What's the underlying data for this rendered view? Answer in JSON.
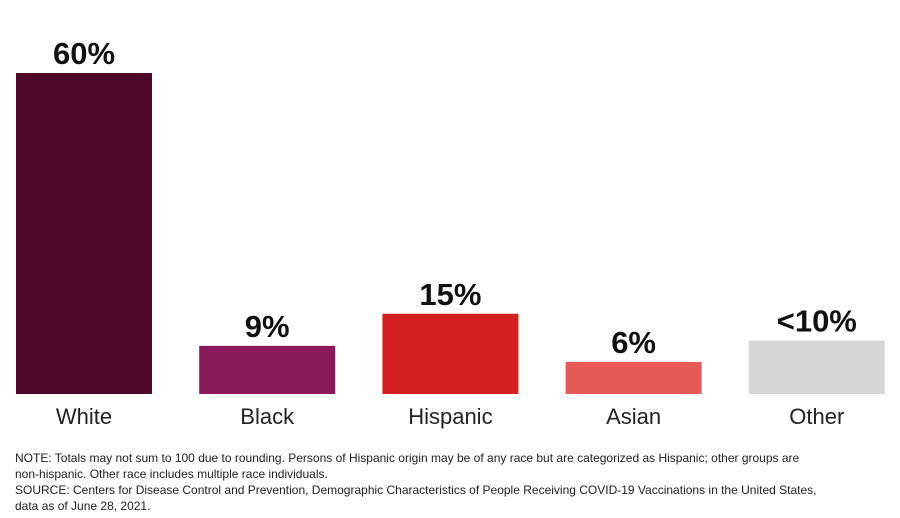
{
  "chart_data": {
    "type": "bar",
    "categories": [
      "White",
      "Black",
      "Hispanic",
      "Asian",
      "Other"
    ],
    "values": [
      60,
      9,
      15,
      6,
      10
    ],
    "data_labels": [
      "60%",
      "9%",
      "15%",
      "6%",
      "<10%"
    ],
    "colors": [
      "#4f072a",
      "#8b1a5b",
      "#d42020",
      "#e55a55",
      "#d6d6d6"
    ],
    "ylim": [
      0,
      60
    ],
    "grid": false,
    "legend": "none"
  },
  "notes": {
    "note_line1": "NOTE: Totals may not sum to 100 due to rounding. Persons of Hispanic origin may be of any race but are categorized as Hispanic; other groups are",
    "note_line2": "non-hispanic. Other race includes multiple race individuals.",
    "source_line1": "SOURCE: Centers for Disease Control and Prevention, Demographic Characteristics of People Receiving COVID-19 Vaccinations in the United States,",
    "source_line2": "data as of June 28, 2021."
  }
}
